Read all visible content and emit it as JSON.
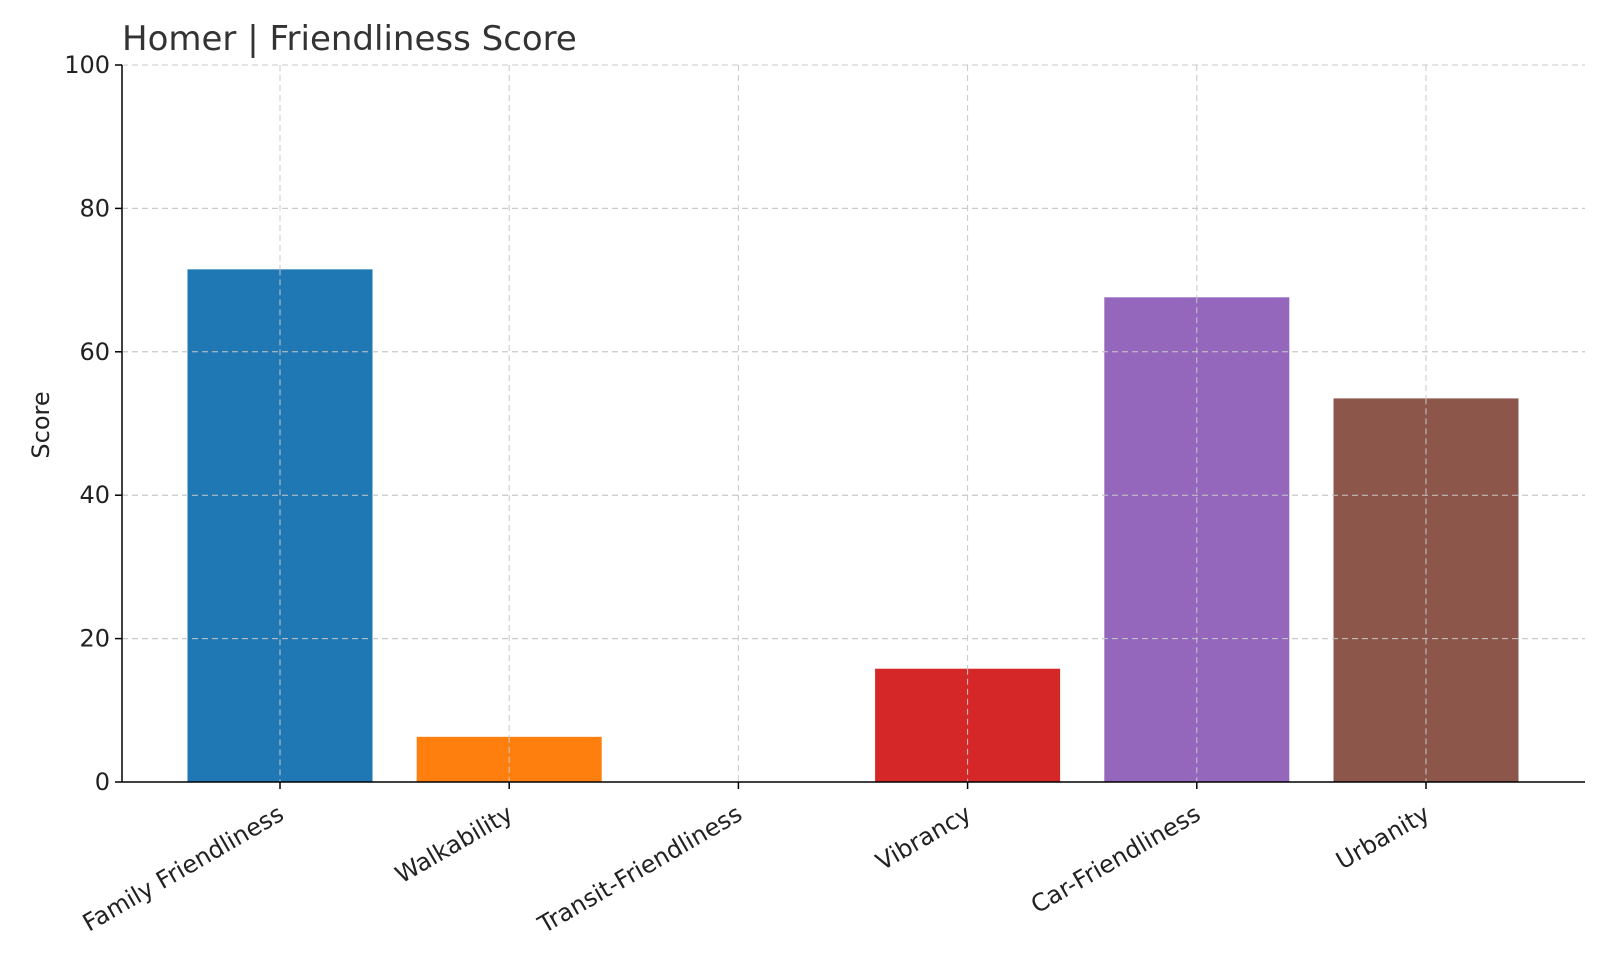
{
  "chart_data": {
    "type": "bar",
    "title": "Homer | Friendliness Score",
    "xlabel": "",
    "ylabel": "Score",
    "ylim": [
      0,
      100
    ],
    "yticks": [
      0,
      20,
      40,
      60,
      80,
      100
    ],
    "grid": true,
    "categories": [
      "Family Friendliness",
      "Walkability",
      "Transit-Friendliness",
      "Vibrancy",
      "Car-Friendliness",
      "Urbanity"
    ],
    "values": [
      71.5,
      6.3,
      0,
      15.8,
      67.6,
      53.5
    ],
    "colors": [
      "#1f77b4",
      "#ff7f0e",
      "#2ca02c",
      "#d62728",
      "#9467bd",
      "#8c564b"
    ]
  }
}
